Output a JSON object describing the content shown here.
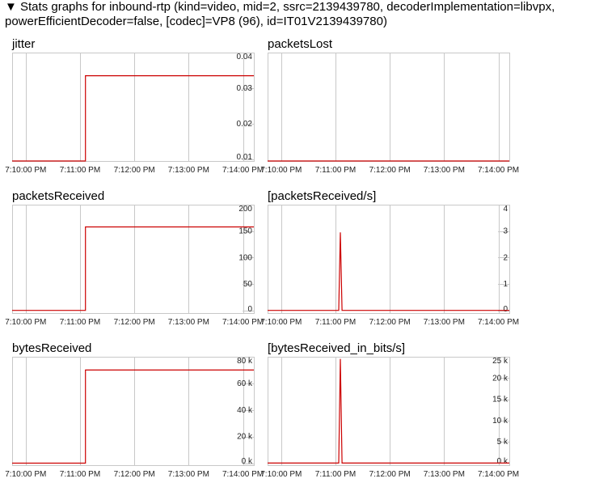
{
  "header": {
    "toggle_icon": "triangle-down-icon",
    "line1": "▼ Stats graphs for inbound-rtp (kind=video, mid=2, ssrc=2139439780, decoderImplementation=libvpx,",
    "line2": "powerEfficientDecoder=false, [codec]=VP8 (96), id=IT01V2139439780)"
  },
  "colors": {
    "series": "#cc0000",
    "grid": "#c8c8c8",
    "border": "#c8c8c8"
  },
  "chart_data": [
    {
      "type": "line",
      "title": "jitter",
      "x_ticks": [
        "7:10:00 PM",
        "7:11:00 PM",
        "7:12:00 PM",
        "7:13:00 PM",
        "7:14:00 PM"
      ],
      "y_ticks": [
        "0.04",
        "0.03",
        "0.02",
        "0.01"
      ],
      "y_tick_values": [
        0.04,
        0.03,
        0.02,
        0.01
      ],
      "ylim": [
        0.0095,
        0.04
      ],
      "xlim": [
        -0.25,
        4.2
      ],
      "x": [
        -0.25,
        1.1,
        1.1,
        4.2
      ],
      "y": [
        0.0095,
        0.0095,
        0.0335,
        0.0335
      ],
      "grid": true
    },
    {
      "type": "line",
      "title": "packetsLost",
      "x_ticks": [
        "7:10:00 PM",
        "7:11:00 PM",
        "7:12:00 PM",
        "7:13:00 PM",
        "7:14:00 PM"
      ],
      "y_ticks": [],
      "y_tick_values": [],
      "ylim": [
        0,
        1
      ],
      "xlim": [
        -0.25,
        4.2
      ],
      "x": [
        -0.25,
        4.2
      ],
      "y": [
        0,
        0
      ],
      "grid": true
    },
    {
      "type": "line",
      "title": "packetsReceived",
      "x_ticks": [
        "7:10:00 PM",
        "7:11:00 PM",
        "7:12:00 PM",
        "7:13:00 PM",
        "7:14:00 PM"
      ],
      "y_ticks": [
        "200",
        "150",
        "100",
        "50",
        "0"
      ],
      "y_tick_values": [
        200,
        150,
        100,
        50,
        0
      ],
      "ylim": [
        -5,
        200
      ],
      "xlim": [
        -0.25,
        4.2
      ],
      "x": [
        -0.25,
        1.1,
        1.1,
        4.2
      ],
      "y": [
        0,
        0,
        158,
        158
      ],
      "grid": true
    },
    {
      "type": "line",
      "title": "[packetsReceived/s]",
      "x_ticks": [
        "7:10:00 PM",
        "7:11:00 PM",
        "7:12:00 PM",
        "7:13:00 PM",
        "7:14:00 PM"
      ],
      "y_ticks": [
        "4",
        "3",
        "2",
        "1",
        "0"
      ],
      "y_tick_values": [
        4,
        3,
        2,
        1,
        0
      ],
      "ylim": [
        -0.1,
        4
      ],
      "xlim": [
        -0.25,
        4.2
      ],
      "x": [
        -0.25,
        1.04,
        1.06,
        1.09,
        1.12,
        4.2
      ],
      "y": [
        0,
        0,
        0,
        2.95,
        0,
        0
      ],
      "grid": true
    },
    {
      "type": "line",
      "title": "bytesReceived",
      "x_ticks": [
        "7:10:00 PM",
        "7:11:00 PM",
        "7:12:00 PM",
        "7:13:00 PM",
        "7:14:00 PM"
      ],
      "y_ticks": [
        "80 k",
        "60 k",
        "40 k",
        "20 k",
        "0 k"
      ],
      "y_tick_values": [
        80000,
        60000,
        40000,
        20000,
        0
      ],
      "ylim": [
        -1500,
        80000
      ],
      "xlim": [
        -0.25,
        4.2
      ],
      "x": [
        -0.25,
        1.1,
        1.1,
        4.2
      ],
      "y": [
        0,
        0,
        70000,
        70000
      ],
      "grid": true
    },
    {
      "type": "line",
      "title": "[bytesReceived_in_bits/s]",
      "x_ticks": [
        "7:10:00 PM",
        "7:11:00 PM",
        "7:12:00 PM",
        "7:13:00 PM",
        "7:14:00 PM"
      ],
      "y_ticks": [
        "25 k",
        "20 k",
        "15 k",
        "10 k",
        "5 k",
        "0 k"
      ],
      "y_tick_values": [
        25000,
        20000,
        15000,
        10000,
        5000,
        0
      ],
      "ylim": [
        -500,
        25000
      ],
      "xlim": [
        -0.25,
        4.2
      ],
      "x": [
        -0.25,
        1.04,
        1.06,
        1.09,
        1.12,
        4.2
      ],
      "y": [
        0,
        0,
        0,
        24500,
        0,
        0
      ],
      "grid": true
    }
  ]
}
